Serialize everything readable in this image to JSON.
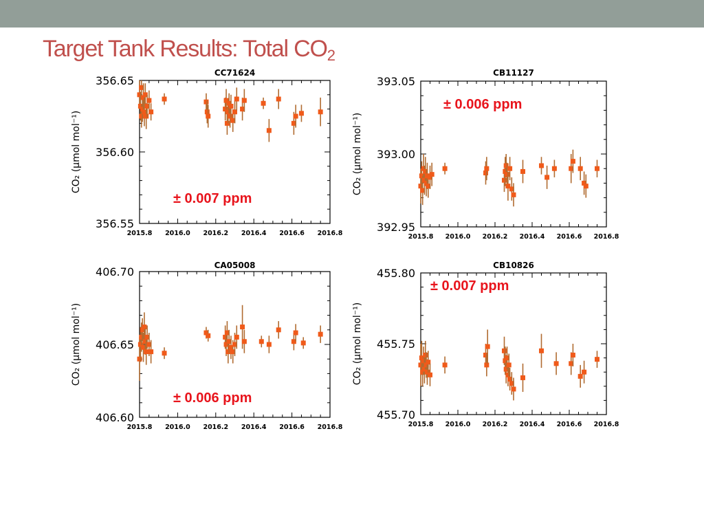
{
  "slide": {
    "title_text": "Target Tank Results:  Total CO",
    "title_sub": "2",
    "title_color": "#c0504d",
    "band_color": "#929e98"
  },
  "colors": {
    "point": "#f05a1a",
    "errorbar": "#b06b30",
    "annotation": "#e8141c"
  },
  "chart_data": [
    {
      "type": "scatter",
      "title": "CC71624",
      "ylabel": "CO₂ (μmol mol⁻¹)",
      "xlim": [
        2015.8,
        2016.8
      ],
      "ylim": [
        356.55,
        356.65
      ],
      "xticks": [
        2015.8,
        2016.0,
        2016.2,
        2016.4,
        2016.6,
        2016.8
      ],
      "xtick_labels": [
        "2015.8",
        "2016.0",
        "2016.2",
        "2016.4",
        "2016.6",
        "2016.8"
      ],
      "yticks": [
        356.55,
        356.6,
        356.65
      ],
      "ytick_labels": [
        "356.55",
        "356.60",
        "356.65"
      ],
      "annotation": "± 0.007 ppm",
      "points": [
        [
          2015.8,
          356.64,
          0.01
        ],
        [
          2015.805,
          356.632,
          0.01
        ],
        [
          2015.81,
          356.625,
          0.008
        ],
        [
          2015.81,
          356.645,
          0.008
        ],
        [
          2015.815,
          356.63,
          0.009
        ],
        [
          2015.82,
          356.638,
          0.01
        ],
        [
          2015.825,
          356.628,
          0.01
        ],
        [
          2015.83,
          356.64,
          0.008
        ],
        [
          2015.835,
          356.625,
          0.009
        ],
        [
          2015.84,
          356.632,
          0.008
        ],
        [
          2015.85,
          356.636,
          0.007
        ],
        [
          2015.86,
          356.628,
          0.006
        ],
        [
          2015.93,
          356.637,
          0.004
        ],
        [
          2016.15,
          356.635,
          0.006
        ],
        [
          2016.155,
          356.628,
          0.008
        ],
        [
          2016.16,
          356.625,
          0.008
        ],
        [
          2016.25,
          356.63,
          0.008
        ],
        [
          2016.255,
          356.636,
          0.008
        ],
        [
          2016.26,
          356.62,
          0.008
        ],
        [
          2016.265,
          356.628,
          0.008
        ],
        [
          2016.27,
          356.634,
          0.007
        ],
        [
          2016.275,
          356.625,
          0.008
        ],
        [
          2016.28,
          356.632,
          0.008
        ],
        [
          2016.29,
          356.622,
          0.008
        ],
        [
          2016.3,
          356.628,
          0.008
        ],
        [
          2016.31,
          356.637,
          0.008
        ],
        [
          2016.34,
          356.63,
          0.008
        ],
        [
          2016.35,
          356.636,
          0.008
        ],
        [
          2016.45,
          356.634,
          0.004
        ],
        [
          2016.48,
          356.615,
          0.008
        ],
        [
          2016.53,
          356.637,
          0.007
        ],
        [
          2016.61,
          356.62,
          0.008
        ],
        [
          2016.62,
          356.625,
          0.008
        ],
        [
          2016.65,
          356.627,
          0.006
        ],
        [
          2016.75,
          356.628,
          0.01
        ]
      ]
    },
    {
      "type": "scatter",
      "title": "CB11127",
      "ylabel": "CO₂ (μmol mol⁻¹)",
      "xlim": [
        2015.8,
        2016.8
      ],
      "ylim": [
        392.95,
        393.05
      ],
      "xticks": [
        2015.8,
        2016.0,
        2016.2,
        2016.4,
        2016.6,
        2016.8
      ],
      "xtick_labels": [
        "2015.8",
        "2016.0",
        "2016.2",
        "2016.4",
        "2016.6",
        "2016.8"
      ],
      "yticks": [
        392.95,
        393.0,
        393.05
      ],
      "ytick_labels": [
        "392.95",
        "393.00",
        "393.05"
      ],
      "annotation": "± 0.006 ppm",
      "points": [
        [
          2015.8,
          392.978,
          0.012
        ],
        [
          2015.805,
          392.985,
          0.01
        ],
        [
          2015.81,
          392.975,
          0.01
        ],
        [
          2015.815,
          392.99,
          0.01
        ],
        [
          2015.82,
          392.982,
          0.01
        ],
        [
          2015.825,
          392.988,
          0.01
        ],
        [
          2015.83,
          392.98,
          0.009
        ],
        [
          2015.835,
          392.985,
          0.009
        ],
        [
          2015.84,
          392.978,
          0.008
        ],
        [
          2015.85,
          392.984,
          0.008
        ],
        [
          2015.86,
          392.986,
          0.008
        ],
        [
          2015.93,
          392.99,
          0.004
        ],
        [
          2016.15,
          392.987,
          0.008
        ],
        [
          2016.155,
          392.99,
          0.008
        ],
        [
          2016.25,
          392.982,
          0.008
        ],
        [
          2016.255,
          392.988,
          0.01
        ],
        [
          2016.26,
          392.992,
          0.008
        ],
        [
          2016.265,
          392.986,
          0.008
        ],
        [
          2016.27,
          392.978,
          0.01
        ],
        [
          2016.28,
          392.99,
          0.008
        ],
        [
          2016.29,
          392.976,
          0.008
        ],
        [
          2016.3,
          392.972,
          0.008
        ],
        [
          2016.35,
          392.988,
          0.008
        ],
        [
          2016.45,
          392.992,
          0.006
        ],
        [
          2016.48,
          392.984,
          0.008
        ],
        [
          2016.52,
          392.99,
          0.006
        ],
        [
          2016.61,
          392.99,
          0.01
        ],
        [
          2016.62,
          392.995,
          0.008
        ],
        [
          2016.66,
          392.99,
          0.008
        ],
        [
          2016.68,
          392.98,
          0.008
        ],
        [
          2016.69,
          392.978,
          0.008
        ],
        [
          2016.75,
          392.99,
          0.006
        ]
      ]
    },
    {
      "type": "scatter",
      "title": "CA05008",
      "ylabel": "CO₂ (μmol mol⁻¹)",
      "xlim": [
        2015.8,
        2016.8
      ],
      "ylim": [
        406.6,
        406.7
      ],
      "xticks": [
        2015.8,
        2016.0,
        2016.2,
        2016.4,
        2016.6,
        2016.8
      ],
      "xtick_labels": [
        "2015.8",
        "2016.0",
        "2016.2",
        "2016.4",
        "2016.6",
        "2016.8"
      ],
      "yticks": [
        406.6,
        406.65,
        406.7
      ],
      "ytick_labels": [
        "406.60",
        "406.65",
        "406.70"
      ],
      "annotation": "± 0.006 ppm",
      "points": [
        [
          2015.8,
          406.64,
          0.015
        ],
        [
          2015.805,
          406.65,
          0.012
        ],
        [
          2015.81,
          406.655,
          0.01
        ],
        [
          2015.815,
          406.66,
          0.008
        ],
        [
          2015.82,
          406.648,
          0.01
        ],
        [
          2015.825,
          406.662,
          0.01
        ],
        [
          2015.83,
          406.652,
          0.009
        ],
        [
          2015.835,
          406.645,
          0.009
        ],
        [
          2015.84,
          406.655,
          0.008
        ],
        [
          2015.85,
          406.65,
          0.008
        ],
        [
          2015.86,
          406.645,
          0.008
        ],
        [
          2015.93,
          406.644,
          0.004
        ],
        [
          2016.15,
          406.658,
          0.004
        ],
        [
          2016.16,
          406.656,
          0.004
        ],
        [
          2016.25,
          406.655,
          0.008
        ],
        [
          2016.255,
          406.65,
          0.008
        ],
        [
          2016.26,
          406.658,
          0.008
        ],
        [
          2016.265,
          406.645,
          0.008
        ],
        [
          2016.27,
          406.652,
          0.008
        ],
        [
          2016.28,
          406.648,
          0.008
        ],
        [
          2016.29,
          406.645,
          0.008
        ],
        [
          2016.3,
          406.65,
          0.008
        ],
        [
          2016.31,
          406.655,
          0.008
        ],
        [
          2016.34,
          406.662,
          0.015
        ],
        [
          2016.35,
          406.652,
          0.008
        ],
        [
          2016.44,
          406.652,
          0.004
        ],
        [
          2016.48,
          406.65,
          0.006
        ],
        [
          2016.53,
          406.66,
          0.006
        ],
        [
          2016.61,
          406.652,
          0.006
        ],
        [
          2016.62,
          406.658,
          0.006
        ],
        [
          2016.66,
          406.651,
          0.004
        ],
        [
          2016.75,
          406.657,
          0.006
        ]
      ]
    },
    {
      "type": "scatter",
      "title": "CB10826",
      "ylabel": "CO₂ (μmol mol⁻¹)",
      "xlim": [
        2015.8,
        2016.8
      ],
      "ylim": [
        455.7,
        455.8
      ],
      "xticks": [
        2015.8,
        2016.0,
        2016.2,
        2016.4,
        2016.6,
        2016.8
      ],
      "xtick_labels": [
        "2015.8",
        "2016.0",
        "2016.2",
        "2016.4",
        "2016.6",
        "2016.8"
      ],
      "yticks": [
        455.7,
        455.75,
        455.8
      ],
      "ytick_labels": [
        "455.70",
        "455.75",
        "455.80"
      ],
      "annotation": "± 0.007 ppm",
      "points": [
        [
          2015.8,
          455.735,
          0.015
        ],
        [
          2015.805,
          455.74,
          0.012
        ],
        [
          2015.81,
          455.73,
          0.01
        ],
        [
          2015.815,
          455.738,
          0.01
        ],
        [
          2015.82,
          455.732,
          0.01
        ],
        [
          2015.825,
          455.742,
          0.01
        ],
        [
          2015.83,
          455.735,
          0.009
        ],
        [
          2015.835,
          455.73,
          0.009
        ],
        [
          2015.84,
          455.737,
          0.008
        ],
        [
          2015.85,
          455.728,
          0.008
        ],
        [
          2015.93,
          455.735,
          0.006
        ],
        [
          2016.15,
          455.742,
          0.008
        ],
        [
          2016.155,
          455.735,
          0.008
        ],
        [
          2016.16,
          455.748,
          0.012
        ],
        [
          2016.25,
          455.745,
          0.01
        ],
        [
          2016.255,
          455.738,
          0.01
        ],
        [
          2016.26,
          455.732,
          0.01
        ],
        [
          2016.265,
          455.74,
          0.008
        ],
        [
          2016.27,
          455.728,
          0.008
        ],
        [
          2016.275,
          455.735,
          0.008
        ],
        [
          2016.28,
          455.725,
          0.008
        ],
        [
          2016.29,
          455.722,
          0.008
        ],
        [
          2016.3,
          455.718,
          0.008
        ],
        [
          2016.35,
          455.726,
          0.01
        ],
        [
          2016.45,
          455.745,
          0.012
        ],
        [
          2016.53,
          455.736,
          0.008
        ],
        [
          2016.61,
          455.736,
          0.008
        ],
        [
          2016.62,
          455.742,
          0.008
        ],
        [
          2016.66,
          455.727,
          0.008
        ],
        [
          2016.68,
          455.73,
          0.008
        ],
        [
          2016.75,
          455.739,
          0.006
        ]
      ]
    }
  ]
}
